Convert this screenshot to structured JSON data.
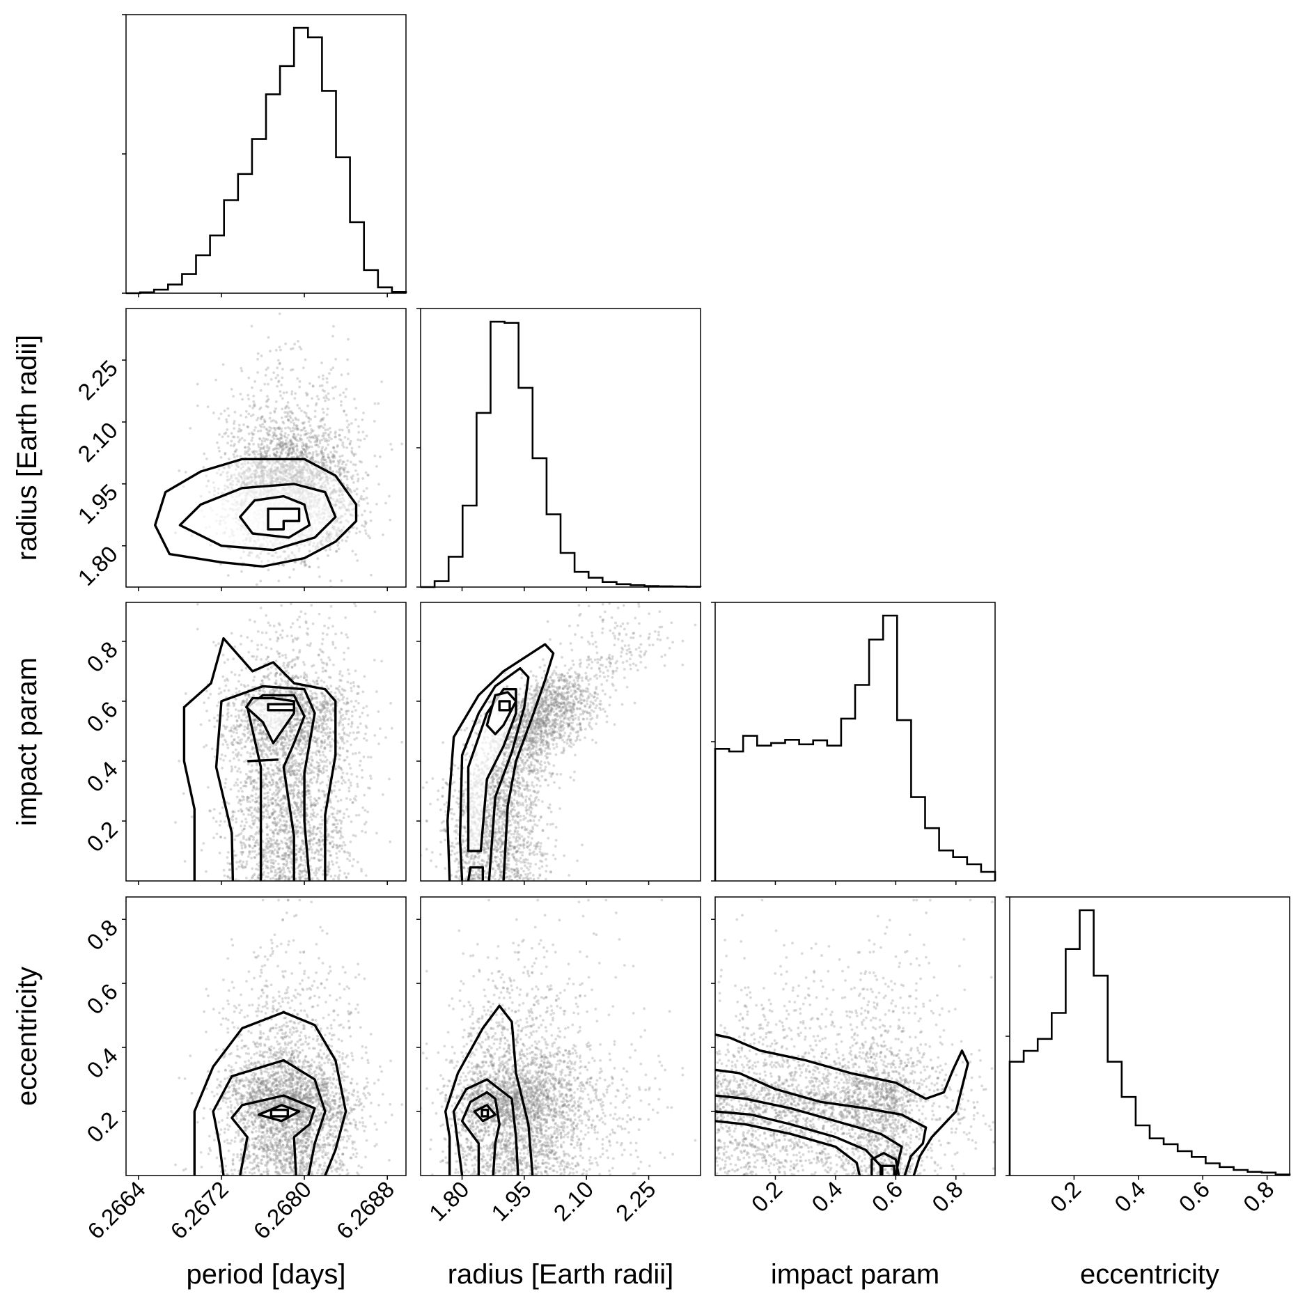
{
  "chart_data": {
    "type": "corner",
    "parameters": [
      {
        "key": "period",
        "label": "period [days]",
        "range": [
          6.26628,
          6.26898
        ],
        "ticks": [
          6.2664,
          6.2672,
          6.268,
          6.2688
        ],
        "tick_labels": [
          "6.2664",
          "6.2672",
          "6.2680",
          "6.2688"
        ],
        "mean": 6.26785,
        "sd": 0.00032
      },
      {
        "key": "radius",
        "label": "radius [Earth radii]",
        "range": [
          1.7,
          2.375
        ],
        "ticks": [
          1.8,
          1.95,
          2.1,
          2.25
        ],
        "tick_labels": [
          "1.80",
          "1.95",
          "2.10",
          "2.25"
        ],
        "mean": 1.88,
        "sd": 0.07
      },
      {
        "key": "impact",
        "label": "impact param",
        "range": [
          0.0,
          0.93
        ],
        "ticks": [
          0.2,
          0.4,
          0.6,
          0.8
        ],
        "tick_labels": [
          "0.2",
          "0.4",
          "0.6",
          "0.8"
        ]
      },
      {
        "key": "ecc",
        "label": "eccentricity",
        "range": [
          0.0,
          0.87
        ],
        "ticks": [
          0.2,
          0.4,
          0.6,
          0.8
        ],
        "tick_labels": [
          "0.2",
          "0.4",
          "0.6",
          "0.8"
        ]
      }
    ],
    "histograms": {
      "period": [
        0.0,
        0.003,
        0.012,
        0.03,
        0.066,
        0.131,
        0.2,
        0.322,
        0.413,
        0.534,
        0.689,
        0.787,
        0.919,
        0.886,
        0.701,
        0.471,
        0.246,
        0.08,
        0.02,
        0.004
      ],
      "radius": [
        0.0,
        0.022,
        0.114,
        0.306,
        0.654,
        0.996,
        0.992,
        0.748,
        0.484,
        0.273,
        0.128,
        0.057,
        0.035,
        0.019,
        0.011,
        0.007,
        0.004,
        0.003,
        0.002,
        0.001
      ],
      "impact": [
        0.498,
        0.488,
        0.547,
        0.51,
        0.52,
        0.532,
        0.515,
        0.53,
        0.51,
        0.612,
        0.739,
        0.91,
        1.0,
        0.606,
        0.316,
        0.199,
        0.115,
        0.09,
        0.063,
        0.034
      ],
      "ecc": [
        0.429,
        0.47,
        0.515,
        0.613,
        0.854,
        1.0,
        0.753,
        0.429,
        0.296,
        0.189,
        0.14,
        0.118,
        0.092,
        0.07,
        0.046,
        0.032,
        0.021,
        0.014,
        0.011,
        0.004
      ]
    },
    "contours_2d": {
      "radius_vs_period": [
        [
          [
            6.26656,
            1.85
          ],
          [
            6.26666,
            1.93
          ],
          [
            6.267,
            1.98
          ],
          [
            6.2674,
            2.01
          ],
          [
            6.268,
            2.01
          ],
          [
            6.2683,
            1.97
          ],
          [
            6.2685,
            1.9
          ],
          [
            6.2685,
            1.86
          ],
          [
            6.2683,
            1.81
          ],
          [
            6.268,
            1.77
          ],
          [
            6.2676,
            1.75
          ],
          [
            6.2672,
            1.76
          ],
          [
            6.2667,
            1.78
          ]
        ],
        [
          [
            6.2668,
            1.85
          ],
          [
            6.267,
            1.9
          ],
          [
            6.2674,
            1.94
          ],
          [
            6.2679,
            1.95
          ],
          [
            6.2682,
            1.93
          ],
          [
            6.2683,
            1.87
          ],
          [
            6.2681,
            1.82
          ],
          [
            6.2677,
            1.79
          ],
          [
            6.2672,
            1.8
          ]
        ],
        [
          [
            6.26738,
            1.87
          ],
          [
            6.26752,
            1.91
          ],
          [
            6.2678,
            1.92
          ],
          [
            6.268,
            1.9
          ],
          [
            6.26805,
            1.85
          ],
          [
            6.26785,
            1.82
          ],
          [
            6.2675,
            1.83
          ]
        ],
        [
          [
            6.26765,
            1.84
          ],
          [
            6.26765,
            1.89
          ],
          [
            6.26795,
            1.89
          ],
          [
            6.26795,
            1.86
          ],
          [
            6.2678,
            1.86
          ],
          [
            6.2678,
            1.84
          ]
        ]
      ],
      "impact_vs_period": [
        [
          [
            6.26694,
            0.0
          ],
          [
            6.26694,
            0.24
          ],
          [
            6.26684,
            0.4
          ],
          [
            6.26684,
            0.58
          ],
          [
            6.2671,
            0.66
          ],
          [
            6.26722,
            0.81
          ],
          [
            6.2675,
            0.7
          ],
          [
            6.2677,
            0.73
          ],
          [
            6.2679,
            0.66
          ],
          [
            6.2682,
            0.64
          ],
          [
            6.2683,
            0.6
          ],
          [
            6.2683,
            0.42
          ],
          [
            6.2682,
            0.22
          ],
          [
            6.2682,
            0.0
          ]
        ],
        [
          [
            6.26731,
            0.0
          ],
          [
            6.2673,
            0.16
          ],
          [
            6.26715,
            0.38
          ],
          [
            6.2672,
            0.6
          ],
          [
            6.2676,
            0.65
          ],
          [
            6.268,
            0.64
          ],
          [
            6.2681,
            0.56
          ],
          [
            6.268,
            0.36
          ],
          [
            6.268,
            0.2
          ],
          [
            6.26805,
            0.0
          ]
        ],
        [
          [
            6.26758,
            0.0
          ],
          [
            6.26758,
            0.38
          ],
          [
            6.26745,
            0.58
          ],
          [
            6.2676,
            0.62
          ],
          [
            6.2679,
            0.62
          ],
          [
            6.268,
            0.55
          ],
          [
            6.2679,
            0.46
          ],
          [
            6.2678,
            0.38
          ],
          [
            6.2679,
            0.15
          ],
          [
            6.2679,
            0.0
          ]
        ],
        [
          [
            6.26744,
            0.58
          ],
          [
            6.2676,
            0.53
          ],
          [
            6.2677,
            0.46
          ],
          [
            6.2679,
            0.56
          ],
          [
            6.2679,
            0.6
          ],
          [
            6.2677,
            0.61
          ],
          [
            6.2675,
            0.61
          ]
        ],
        [
          [
            6.26745,
            0.4
          ],
          [
            6.26775,
            0.405
          ]
        ],
        [
          [
            6.26765,
            0.57
          ],
          [
            6.26765,
            0.59
          ],
          [
            6.2679,
            0.59
          ],
          [
            6.2679,
            0.57
          ]
        ]
      ],
      "impact_vs_radius": [
        [
          [
            1.77,
            0.0
          ],
          [
            1.765,
            0.2
          ],
          [
            1.78,
            0.48
          ],
          [
            1.84,
            0.62
          ],
          [
            1.9,
            0.7
          ],
          [
            2.0,
            0.79
          ],
          [
            2.02,
            0.76
          ],
          [
            2.0,
            0.67
          ],
          [
            1.97,
            0.55
          ],
          [
            1.93,
            0.4
          ],
          [
            1.91,
            0.25
          ],
          [
            1.9,
            0.0
          ]
        ],
        [
          [
            1.8,
            0.0
          ],
          [
            1.795,
            0.14
          ],
          [
            1.8,
            0.42
          ],
          [
            1.84,
            0.56
          ],
          [
            1.88,
            0.65
          ],
          [
            1.94,
            0.71
          ],
          [
            1.96,
            0.68
          ],
          [
            1.95,
            0.58
          ],
          [
            1.92,
            0.43
          ],
          [
            1.88,
            0.28
          ],
          [
            1.865,
            0.0
          ]
        ],
        [
          [
            1.815,
            0.1
          ],
          [
            1.815,
            0.38
          ],
          [
            1.86,
            0.56
          ],
          [
            1.9,
            0.64
          ],
          [
            1.93,
            0.64
          ],
          [
            1.93,
            0.56
          ],
          [
            1.9,
            0.45
          ],
          [
            1.86,
            0.34
          ],
          [
            1.845,
            0.1
          ]
        ],
        [
          [
            1.86,
            0.52
          ],
          [
            1.88,
            0.62
          ],
          [
            1.91,
            0.63
          ],
          [
            1.93,
            0.6
          ],
          [
            1.9,
            0.52
          ],
          [
            1.88,
            0.49
          ]
        ],
        [
          [
            1.815,
            0.0
          ],
          [
            1.82,
            0.045
          ],
          [
            1.85,
            0.045
          ],
          [
            1.85,
            0.0
          ]
        ],
        [
          [
            1.89,
            0.57
          ],
          [
            1.89,
            0.6
          ],
          [
            1.915,
            0.6
          ],
          [
            1.915,
            0.57
          ]
        ]
      ],
      "ecc_vs_period": [
        [
          [
            6.26694,
            0.0
          ],
          [
            6.26694,
            0.1
          ],
          [
            6.26694,
            0.2
          ],
          [
            6.26712,
            0.34
          ],
          [
            6.2674,
            0.46
          ],
          [
            6.2678,
            0.51
          ],
          [
            6.2681,
            0.47
          ],
          [
            6.2683,
            0.36
          ],
          [
            6.2684,
            0.2
          ],
          [
            6.2683,
            0.08
          ],
          [
            6.2682,
            0.0
          ]
        ],
        [
          [
            6.26722,
            0.0
          ],
          [
            6.26718,
            0.1
          ],
          [
            6.26712,
            0.2
          ],
          [
            6.2673,
            0.31
          ],
          [
            6.2678,
            0.36
          ],
          [
            6.2681,
            0.3
          ],
          [
            6.2682,
            0.2
          ],
          [
            6.2681,
            0.1
          ],
          [
            6.26804,
            0.0
          ]
        ],
        [
          [
            6.26738,
            0.0
          ],
          [
            6.26745,
            0.12
          ],
          [
            6.2673,
            0.18
          ],
          [
            6.2674,
            0.22
          ],
          [
            6.2678,
            0.25
          ],
          [
            6.2681,
            0.21
          ],
          [
            6.26805,
            0.16
          ],
          [
            6.2679,
            0.12
          ],
          [
            6.26792,
            0.0
          ]
        ],
        [
          [
            6.26756,
            0.19
          ],
          [
            6.26778,
            0.22
          ],
          [
            6.26795,
            0.2
          ],
          [
            6.26778,
            0.17
          ]
        ],
        [
          [
            6.26768,
            0.185
          ],
          [
            6.26768,
            0.205
          ],
          [
            6.26784,
            0.205
          ],
          [
            6.26784,
            0.185
          ]
        ]
      ],
      "ecc_vs_radius": [
        [
          [
            1.77,
            0.0
          ],
          [
            1.77,
            0.12
          ],
          [
            1.76,
            0.2
          ],
          [
            1.79,
            0.32
          ],
          [
            1.85,
            0.46
          ],
          [
            1.89,
            0.53
          ],
          [
            1.92,
            0.48
          ],
          [
            1.93,
            0.32
          ],
          [
            1.96,
            0.16
          ],
          [
            1.97,
            0.0
          ]
        ],
        [
          [
            1.8,
            0.0
          ],
          [
            1.79,
            0.1
          ],
          [
            1.78,
            0.2
          ],
          [
            1.81,
            0.27
          ],
          [
            1.86,
            0.3
          ],
          [
            1.92,
            0.24
          ],
          [
            1.93,
            0.12
          ],
          [
            1.935,
            0.0
          ]
        ],
        [
          [
            1.84,
            0.0
          ],
          [
            1.84,
            0.1
          ],
          [
            1.8,
            0.17
          ],
          [
            1.82,
            0.23
          ],
          [
            1.86,
            0.26
          ],
          [
            1.88,
            0.24
          ],
          [
            1.89,
            0.16
          ],
          [
            1.88,
            0.1
          ],
          [
            1.875,
            0.0
          ]
        ],
        [
          [
            1.83,
            0.2
          ],
          [
            1.86,
            0.22
          ],
          [
            1.88,
            0.19
          ],
          [
            1.85,
            0.17
          ]
        ],
        [
          [
            1.848,
            0.185
          ],
          [
            1.848,
            0.205
          ],
          [
            1.862,
            0.205
          ],
          [
            1.862,
            0.185
          ]
        ]
      ],
      "ecc_vs_impact": [
        [
          [
            0.0,
            0.44
          ],
          [
            0.05,
            0.43
          ],
          [
            0.15,
            0.39
          ],
          [
            0.3,
            0.36
          ],
          [
            0.45,
            0.32
          ],
          [
            0.6,
            0.29
          ],
          [
            0.7,
            0.24
          ],
          [
            0.76,
            0.26
          ],
          [
            0.79,
            0.33
          ],
          [
            0.82,
            0.39
          ],
          [
            0.84,
            0.35
          ],
          [
            0.8,
            0.2
          ],
          [
            0.72,
            0.12
          ],
          [
            0.68,
            0.06
          ],
          [
            0.66,
            0.0
          ]
        ],
        [
          [
            0.0,
            0.33
          ],
          [
            0.08,
            0.32
          ],
          [
            0.2,
            0.27
          ],
          [
            0.35,
            0.23
          ],
          [
            0.5,
            0.21
          ],
          [
            0.62,
            0.19
          ],
          [
            0.7,
            0.15
          ],
          [
            0.69,
            0.1
          ],
          [
            0.65,
            0.06
          ],
          [
            0.63,
            0.0
          ]
        ],
        [
          [
            0.0,
            0.25
          ],
          [
            0.1,
            0.24
          ],
          [
            0.25,
            0.21
          ],
          [
            0.4,
            0.17
          ],
          [
            0.55,
            0.13
          ],
          [
            0.62,
            0.09
          ],
          [
            0.61,
            0.05
          ],
          [
            0.6,
            0.0
          ]
        ],
        [
          [
            0.0,
            0.2
          ],
          [
            0.12,
            0.19
          ],
          [
            0.25,
            0.16
          ],
          [
            0.4,
            0.12
          ],
          [
            0.5,
            0.08
          ],
          [
            0.55,
            0.03
          ],
          [
            0.55,
            0.0
          ]
        ],
        [
          [
            0.0,
            0.17
          ],
          [
            0.1,
            0.16
          ],
          [
            0.25,
            0.13
          ],
          [
            0.4,
            0.09
          ],
          [
            0.47,
            0.04
          ],
          [
            0.48,
            0.0
          ]
        ],
        [
          [
            0.52,
            0.0
          ],
          [
            0.52,
            0.05
          ],
          [
            0.56,
            0.07
          ],
          [
            0.6,
            0.05
          ],
          [
            0.61,
            0.0
          ]
        ],
        [
          [
            0.555,
            0.0
          ],
          [
            0.555,
            0.03
          ],
          [
            0.595,
            0.03
          ],
          [
            0.595,
            0.0
          ]
        ]
      ]
    },
    "styles": {
      "contour_color": "#000000",
      "point_color": "#808080",
      "background": "#ffffff"
    }
  }
}
